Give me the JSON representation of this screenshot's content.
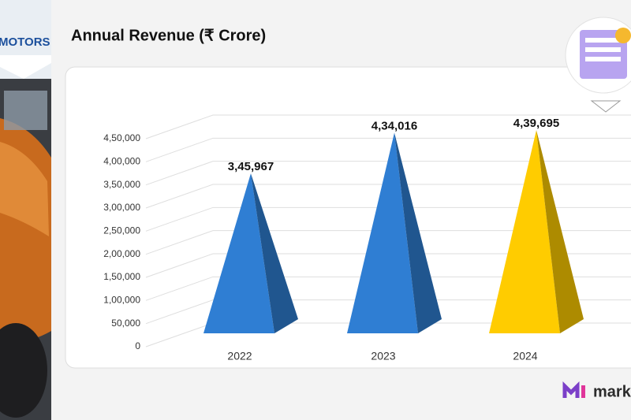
{
  "brand": "MOTORS",
  "logo": "mark",
  "chart_data": {
    "type": "pyramid",
    "title": "Annual Revenue (₹ Crore)",
    "categories": [
      "2022",
      "2023",
      "2024"
    ],
    "values": [
      345967,
      434016,
      439695
    ],
    "value_labels": [
      "3,45,967",
      "4,34,016",
      "4,39,695"
    ],
    "colors": [
      "#2f7ed3",
      "#2f7ed3",
      "#ffcc00"
    ],
    "ylim": [
      0,
      450000
    ],
    "yticks": [
      0,
      {
        "value": 50000,
        "label": "50,000"
      },
      {
        "value": 100000,
        "label": "1,00,000"
      },
      {
        "value": 150000,
        "label": "1,50,000"
      },
      {
        "value": 200000,
        "label": "2,00,000"
      },
      {
        "value": 250000,
        "label": "2,50,000"
      },
      {
        "value": 300000,
        "label": "3,00,000"
      },
      {
        "value": 350000,
        "label": "3,50,000"
      },
      {
        "value": 400000,
        "label": "4,00,000"
      },
      {
        "value": 450000,
        "label": "4,50,000"
      }
    ],
    "grid": true
  }
}
